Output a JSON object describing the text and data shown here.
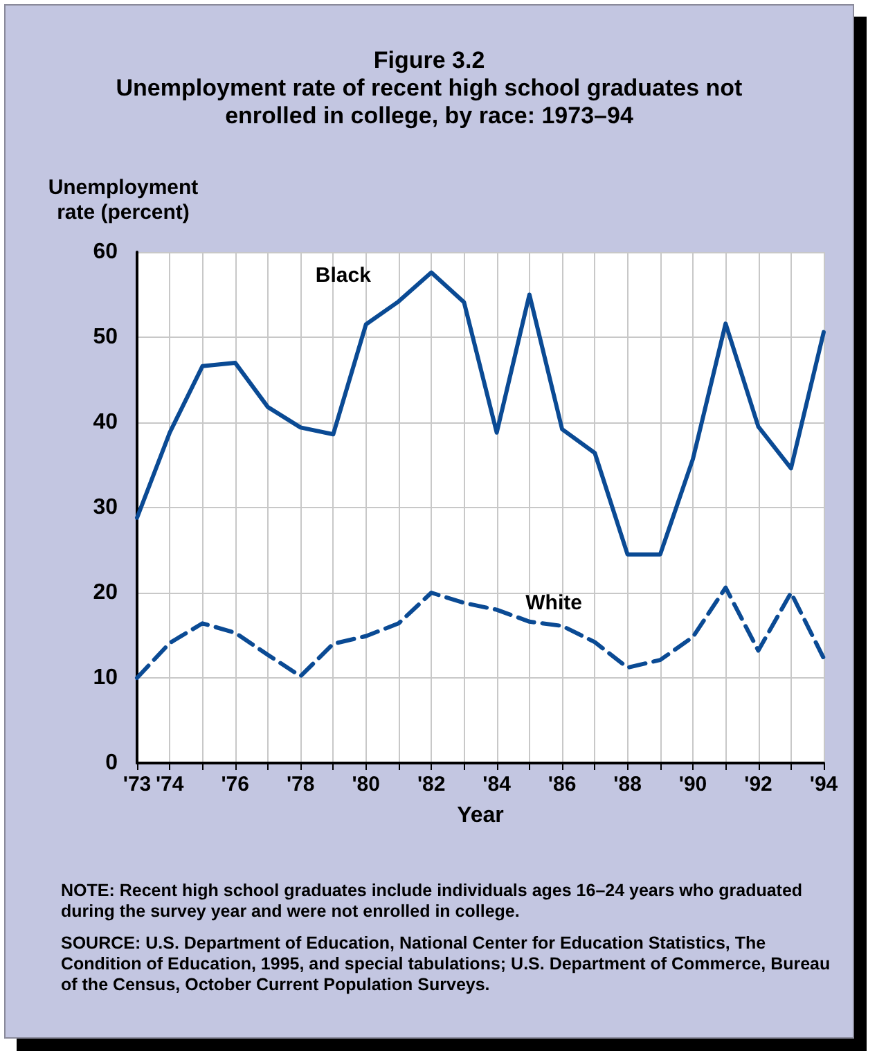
{
  "chart_data": {
    "type": "line",
    "title": "Figure 3.2",
    "subtitle": "Unemployment rate of recent high school graduates not enrolled in college, by race: 1973–94",
    "xlabel": "Year",
    "ylabel": "Unemployment rate (percent)",
    "x": [
      1973,
      1974,
      1975,
      1976,
      1977,
      1978,
      1979,
      1980,
      1981,
      1982,
      1983,
      1984,
      1985,
      1986,
      1987,
      1988,
      1989,
      1990,
      1991,
      1992,
      1993,
      1994
    ],
    "series": [
      {
        "name": "Black",
        "color": "#0a4a94",
        "line_style": "solid",
        "values": [
          28.8,
          38.8,
          46.6,
          47.0,
          41.8,
          39.4,
          38.6,
          51.5,
          54.2,
          57.6,
          54.1,
          38.8,
          55.0,
          39.2,
          36.4,
          24.5,
          24.5,
          35.7,
          51.6,
          39.5,
          34.6,
          50.6
        ]
      },
      {
        "name": "White",
        "color": "#0a4a94",
        "line_style": "dashed",
        "values": [
          10.0,
          14.1,
          16.4,
          15.3,
          12.7,
          10.2,
          14.0,
          14.9,
          16.4,
          20.0,
          18.8,
          18.0,
          16.6,
          16.1,
          14.2,
          11.2,
          12.1,
          14.8,
          20.6,
          13.2,
          20.0,
          12.3
        ]
      }
    ],
    "xlim": [
      1973,
      1994
    ],
    "xticks": [
      {
        "value": 1973,
        "label": "'73"
      },
      {
        "value": 1974,
        "label": "'74"
      },
      {
        "value": 1975,
        "label": null
      },
      {
        "value": 1976,
        "label": "'76"
      },
      {
        "value": 1977,
        "label": null
      },
      {
        "value": 1978,
        "label": "'78"
      },
      {
        "value": 1979,
        "label": null
      },
      {
        "value": 1980,
        "label": "'80"
      },
      {
        "value": 1981,
        "label": null
      },
      {
        "value": 1982,
        "label": "'82"
      },
      {
        "value": 1983,
        "label": null
      },
      {
        "value": 1984,
        "label": "'84"
      },
      {
        "value": 1985,
        "label": null
      },
      {
        "value": 1986,
        "label": "'86"
      },
      {
        "value": 1987,
        "label": null
      },
      {
        "value": 1988,
        "label": "'88"
      },
      {
        "value": 1989,
        "label": null
      },
      {
        "value": 1990,
        "label": "'90"
      },
      {
        "value": 1991,
        "label": null
      },
      {
        "value": 1992,
        "label": "'92"
      },
      {
        "value": 1993,
        "label": null
      },
      {
        "value": 1994,
        "label": "'94"
      }
    ],
    "ylim": [
      0,
      60
    ],
    "yticks": [
      0,
      10,
      20,
      30,
      40,
      50,
      60
    ],
    "grid": true,
    "legend": false,
    "marker": "none",
    "annotations": [
      "NOTE: Recent high school graduates include individuals ages 16–24 years who graduated during the survey year and were not enrolled in college.",
      "SOURCE: U.S. Department of Education, National Center for Education Statistics, The Condition of Education, 1995, and special tabulations; U.S. Department of Commerce, Bureau of the Census, October Current Population Surveys."
    ]
  }
}
